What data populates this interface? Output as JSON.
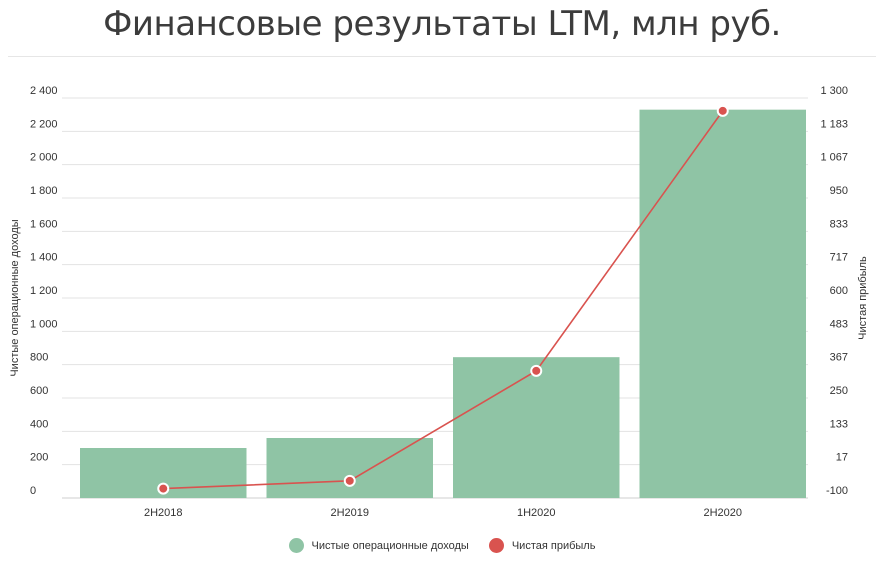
{
  "title": "Финансовые результаты LTM, млн руб.",
  "chart_data": {
    "type": "bar",
    "categories": [
      "2H2018",
      "2H2019",
      "1H2020",
      "2H2020"
    ],
    "series": [
      {
        "name": "Чистые операционные доходы",
        "type": "bar",
        "axis": "left",
        "color": "#8fc4a5",
        "values": [
          300,
          360,
          845,
          2330
        ]
      },
      {
        "name": "Чистая прибыль",
        "type": "line",
        "axis": "right",
        "color": "#d9534f",
        "values": [
          -67,
          -40,
          345,
          1255
        ]
      }
    ],
    "ylabel_left": "Чистые операционные доходы",
    "ylabel_right": "Чистая прибыль",
    "ylim_left": [
      0,
      2400
    ],
    "ylim_right": [
      -100,
      1300
    ],
    "yticks_left": [
      "0",
      "200",
      "400",
      "600",
      "800",
      "1 000",
      "1 200",
      "1 400",
      "1 600",
      "1 800",
      "2 000",
      "2 200",
      "2 400"
    ],
    "yticks_right": [
      "-100",
      "17",
      "133",
      "250",
      "367",
      "483",
      "600",
      "717",
      "833",
      "950",
      "1 067",
      "1 183",
      "1 300"
    ],
    "grid": true,
    "legend_position": "bottom"
  }
}
